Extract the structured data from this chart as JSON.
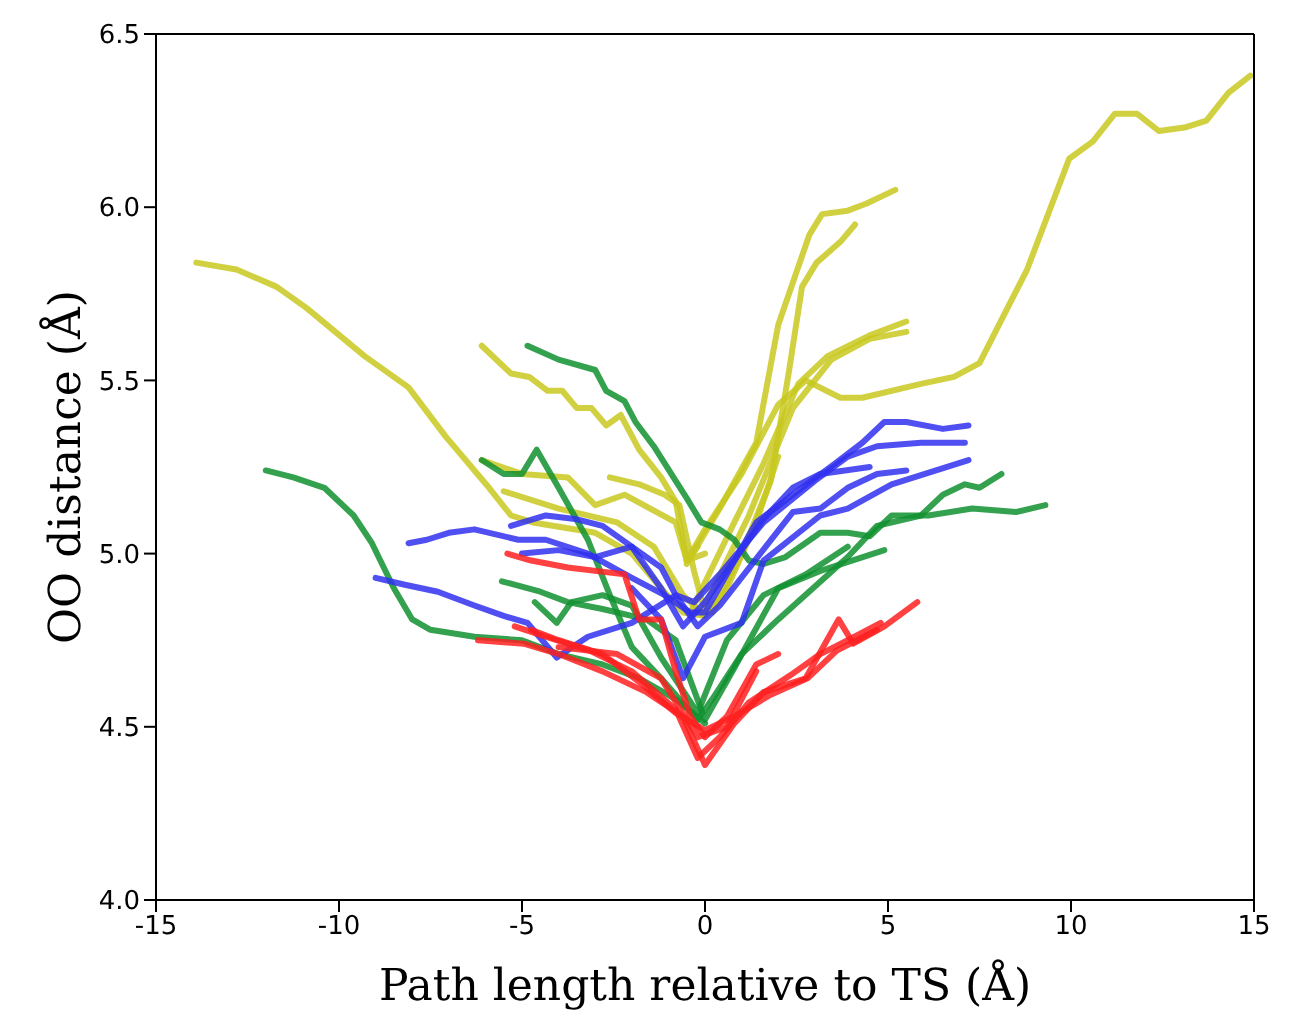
{
  "chart_data": {
    "type": "line",
    "xlabel": "Path length relative to TS (Å)",
    "ylabel": "OO distance (Å)",
    "xlim": [
      -15,
      15
    ],
    "xticks": [
      -15,
      -10,
      -5,
      0,
      5,
      10,
      15
    ],
    "ylim": [
      4,
      6.5
    ],
    "yticks": [
      {
        "value": 4,
        "label": "4.0"
      },
      {
        "value": 4.5,
        "label": "4.5"
      },
      {
        "value": 5,
        "label": "5.0"
      },
      {
        "value": 5.5,
        "label": "5.5"
      },
      {
        "value": 6,
        "label": "6.0"
      },
      {
        "value": 6.5,
        "label": "6.5"
      }
    ],
    "marker": "none",
    "line_style": "solid",
    "series": [
      {
        "color": "#c8c81e",
        "x": [
          -13.9,
          -12.8,
          -11.7,
          -10.9,
          -9.3,
          -8.1,
          -7.1,
          -5.9,
          -5.3,
          -4.7,
          -3.0,
          -2.0,
          -1.2,
          -0.6,
          0,
          0.6,
          1.4,
          2.0
        ],
        "values": [
          5.84,
          5.82,
          5.77,
          5.71,
          5.57,
          5.48,
          5.34,
          5.19,
          5.11,
          5.09,
          5.06,
          5.0,
          4.9,
          4.83,
          4.82,
          4.9,
          5.09,
          5.28
        ]
      },
      {
        "color": "#c8c81e",
        "x": [
          -0.5,
          0,
          1.0,
          2.0,
          2.75,
          3.7,
          4.3,
          5.9,
          6.8,
          7.5,
          8.8,
          9.95,
          10.6,
          11.2,
          11.8,
          12.4,
          13.1,
          13.7,
          14.3,
          14.9
        ],
        "values": [
          4.98,
          5.07,
          5.23,
          5.43,
          5.5,
          5.45,
          5.45,
          5.49,
          5.51,
          5.55,
          5.82,
          6.14,
          6.19,
          6.27,
          6.27,
          6.22,
          6.23,
          6.25,
          6.33,
          6.38
        ]
      },
      {
        "color": "#c8c81e",
        "x": [
          -0.5,
          0.4,
          1.4,
          2.0,
          2.85,
          3.2,
          3.9,
          4.4,
          5.2
        ],
        "values": [
          4.97,
          5.13,
          5.32,
          5.66,
          5.92,
          5.98,
          5.99,
          6.01,
          6.05
        ]
      },
      {
        "color": "#c8c81e",
        "x": [
          0.2,
          1.0,
          1.8,
          2.3,
          2.65,
          3.05,
          3.7,
          4.1
        ],
        "values": [
          4.83,
          5.0,
          5.21,
          5.53,
          5.77,
          5.84,
          5.9,
          5.95
        ]
      },
      {
        "color": "#c8c81e",
        "x": [
          -0.4,
          0.8,
          1.6,
          2.55,
          3.35,
          4.5,
          5.5
        ],
        "values": [
          4.83,
          5.09,
          5.26,
          5.49,
          5.57,
          5.63,
          5.67
        ]
      },
      {
        "color": "#c8c81e",
        "x": [
          0,
          1.2,
          2.4,
          3.45,
          4.5,
          5.5
        ],
        "values": [
          4.85,
          5.11,
          5.42,
          5.56,
          5.62,
          5.64
        ]
      },
      {
        "color": "#c8c81e",
        "x": [
          -6.1,
          -5.3,
          -4.8,
          -4.3,
          -3.9,
          -3.5,
          -3.1,
          -2.7,
          -2.3,
          -1.8,
          -1.2,
          -0.8,
          -0.5,
          -0.2
        ],
        "values": [
          5.6,
          5.52,
          5.51,
          5.47,
          5.47,
          5.42,
          5.42,
          5.37,
          5.4,
          5.3,
          5.22,
          5.15,
          4.98,
          5.02
        ]
      },
      {
        "color": "#c8c81e",
        "x": [
          -6.1,
          -5.0,
          -3.75,
          -3.0,
          -2.2,
          -0.8,
          -0.5,
          0
        ],
        "values": [
          5.27,
          5.23,
          5.22,
          5.14,
          5.17,
          5.09,
          4.98,
          5.0
        ]
      },
      {
        "color": "#c8c81e",
        "x": [
          -2.6,
          -1.8,
          -1.1,
          -0.7,
          -0.3,
          0
        ],
        "values": [
          5.22,
          5.2,
          5.17,
          5.14,
          4.95,
          4.83
        ]
      },
      {
        "color": "#c8c81e",
        "x": [
          -5.5,
          -4.0,
          -2.4,
          -1.4,
          -0.6,
          0
        ],
        "values": [
          5.18,
          5.13,
          5.09,
          5.02,
          4.88,
          4.82
        ]
      },
      {
        "color": "#109030",
        "x": [
          -12.0,
          -11.25,
          -10.4,
          -9.6,
          -9.1,
          -8.5,
          -8.0,
          -7.5,
          -6.3,
          -5.0,
          -4.0,
          -2.8,
          -1.8,
          -0.8,
          0
        ],
        "values": [
          5.24,
          5.22,
          5.19,
          5.11,
          5.03,
          4.9,
          4.81,
          4.78,
          4.76,
          4.75,
          4.71,
          4.68,
          4.64,
          4.58,
          4.51
        ]
      },
      {
        "color": "#109030",
        "x": [
          -4.85,
          -4.0,
          -3.0,
          -2.7,
          -2.2,
          -1.9,
          -1.4,
          -0.8,
          -0.5,
          -0.1,
          0.4,
          0.8,
          1.2,
          1.6,
          2.2,
          3.15,
          3.9,
          4.5,
          5.1,
          6.1,
          7.3,
          8.5,
          9.3
        ],
        "values": [
          5.6,
          5.56,
          5.53,
          5.47,
          5.44,
          5.38,
          5.31,
          5.21,
          5.16,
          5.09,
          5.07,
          5.04,
          4.98,
          4.97,
          4.99,
          5.06,
          5.06,
          5.05,
          5.11,
          5.11,
          5.13,
          5.12,
          5.14
        ]
      },
      {
        "color": "#109030",
        "x": [
          -6.1,
          -5.5,
          -5.0,
          -4.6,
          -4.0,
          -3.2,
          -2.6,
          -2.0,
          -1.2,
          -0.2,
          0.2,
          1.0,
          2.0,
          3.9,
          4.7,
          5.9,
          6.5,
          7.1,
          7.5,
          8.1
        ],
        "values": [
          5.27,
          5.23,
          5.23,
          5.3,
          5.19,
          5.04,
          4.88,
          4.73,
          4.64,
          4.52,
          4.58,
          4.71,
          4.81,
          4.99,
          5.08,
          5.11,
          5.17,
          5.2,
          5.19,
          5.23
        ]
      },
      {
        "color": "#109030",
        "x": [
          -5.55,
          -4.5,
          -3.75,
          -2.8,
          -1.6,
          -0.8,
          0,
          0.8,
          2.0,
          3.15,
          4.9
        ],
        "values": [
          4.92,
          4.89,
          4.86,
          4.84,
          4.81,
          4.75,
          4.52,
          4.67,
          4.9,
          4.95,
          5.01
        ]
      },
      {
        "color": "#109030",
        "x": [
          -4.65,
          -4.05,
          -3.65,
          -2.8,
          -2.0,
          -1.2,
          -0.2,
          0.6,
          1.6,
          2.75,
          3.9
        ],
        "values": [
          4.86,
          4.8,
          4.86,
          4.88,
          4.85,
          4.7,
          4.54,
          4.75,
          4.88,
          4.94,
          5.02
        ]
      },
      {
        "color": "#3030f0",
        "x": [
          -8.1,
          -7.6,
          -7.0,
          -6.3,
          -5.1,
          -4.35,
          -3.2,
          -2.0,
          -1.1,
          -0.4,
          0,
          1.4,
          2.4,
          3.55,
          4.3,
          4.9,
          5.5,
          6.5,
          7.2
        ],
        "values": [
          5.03,
          5.04,
          5.06,
          5.07,
          5.04,
          5.04,
          5.0,
          4.93,
          4.88,
          4.83,
          4.83,
          5.09,
          5.17,
          5.26,
          5.32,
          5.38,
          5.38,
          5.36,
          5.37
        ]
      },
      {
        "color": "#3030f0",
        "x": [
          -9.0,
          -8.2,
          -7.3,
          -6.3,
          -5.5,
          -4.85,
          -4.05,
          -3.2,
          -2.0,
          -0.8,
          -0.3,
          0.4,
          1.2,
          1.6,
          3.0,
          3.9,
          4.7,
          5.9,
          7.1
        ],
        "values": [
          4.93,
          4.91,
          4.89,
          4.85,
          4.82,
          4.8,
          4.7,
          4.76,
          4.8,
          4.88,
          4.86,
          4.94,
          5.04,
          5.09,
          5.21,
          5.28,
          5.31,
          5.32,
          5.32
        ]
      },
      {
        "color": "#3030f0",
        "x": [
          -5.3,
          -4.35,
          -3.55,
          -2.8,
          -2.0,
          -1.2,
          -0.6,
          0,
          1.6,
          2.4,
          3.15,
          4.5
        ],
        "values": [
          5.08,
          5.11,
          5.1,
          5.08,
          5.02,
          4.9,
          4.79,
          4.86,
          5.1,
          5.19,
          5.23,
          5.25
        ]
      },
      {
        "color": "#3030f0",
        "x": [
          -5.0,
          -4.0,
          -3.0,
          -2.0,
          -1.2,
          -0.8,
          -0.2,
          0.4,
          2.4,
          3.15,
          3.9,
          4.7,
          5.5
        ],
        "values": [
          5.0,
          5.01,
          4.99,
          5.02,
          4.96,
          4.88,
          4.79,
          4.85,
          5.12,
          5.13,
          5.19,
          5.23,
          5.24
        ]
      },
      {
        "color": "#3030f0",
        "x": [
          -2.0,
          -1.2,
          -0.6,
          0,
          1.0,
          1.6,
          3.15,
          3.9,
          5.1,
          7.2
        ],
        "values": [
          4.9,
          4.81,
          4.64,
          4.76,
          4.8,
          4.98,
          5.11,
          5.13,
          5.2,
          5.27
        ]
      },
      {
        "color": "#ff2020",
        "x": [
          -5.4,
          -4.75,
          -3.75,
          -2.2,
          -1.8,
          -1.2,
          -0.8,
          -0.4,
          0,
          0.6,
          1.4,
          2.0
        ],
        "values": [
          5.0,
          4.98,
          4.96,
          4.94,
          4.81,
          4.81,
          4.66,
          4.53,
          4.47,
          4.53,
          4.68,
          4.71
        ]
      },
      {
        "color": "#ff2020",
        "x": [
          -6.2,
          -4.95,
          -4.0,
          -2.8,
          -1.6,
          -0.6,
          0,
          0.8,
          1.6,
          2.75,
          3.65,
          4.05,
          4.9,
          5.8
        ],
        "values": [
          4.75,
          4.74,
          4.71,
          4.66,
          4.6,
          4.53,
          4.39,
          4.51,
          4.6,
          4.64,
          4.81,
          4.74,
          4.79,
          4.86
        ]
      },
      {
        "color": "#ff2020",
        "x": [
          -5.2,
          -4.35,
          -3.15,
          -2.0,
          -0.8,
          -0.2,
          0.4,
          1.2,
          2.35,
          3.15,
          3.9,
          4.8
        ],
        "values": [
          4.79,
          4.76,
          4.72,
          4.66,
          4.55,
          4.41,
          4.47,
          4.57,
          4.65,
          4.71,
          4.75,
          4.8
        ]
      },
      {
        "color": "#ff2020",
        "x": [
          -4.75,
          -4.0,
          -2.8,
          -1.8,
          -0.8,
          0,
          0.8,
          1.75,
          2.8,
          3.6,
          4.7
        ],
        "values": [
          4.78,
          4.75,
          4.71,
          4.63,
          4.54,
          4.49,
          4.53,
          4.59,
          4.64,
          4.72,
          4.78
        ]
      },
      {
        "color": "#ff2020",
        "x": [
          -4.0,
          -2.4,
          -1.2,
          -0.2,
          0.6,
          1.4
        ],
        "values": [
          4.73,
          4.71,
          4.64,
          4.47,
          4.5,
          4.66
        ]
      }
    ]
  }
}
